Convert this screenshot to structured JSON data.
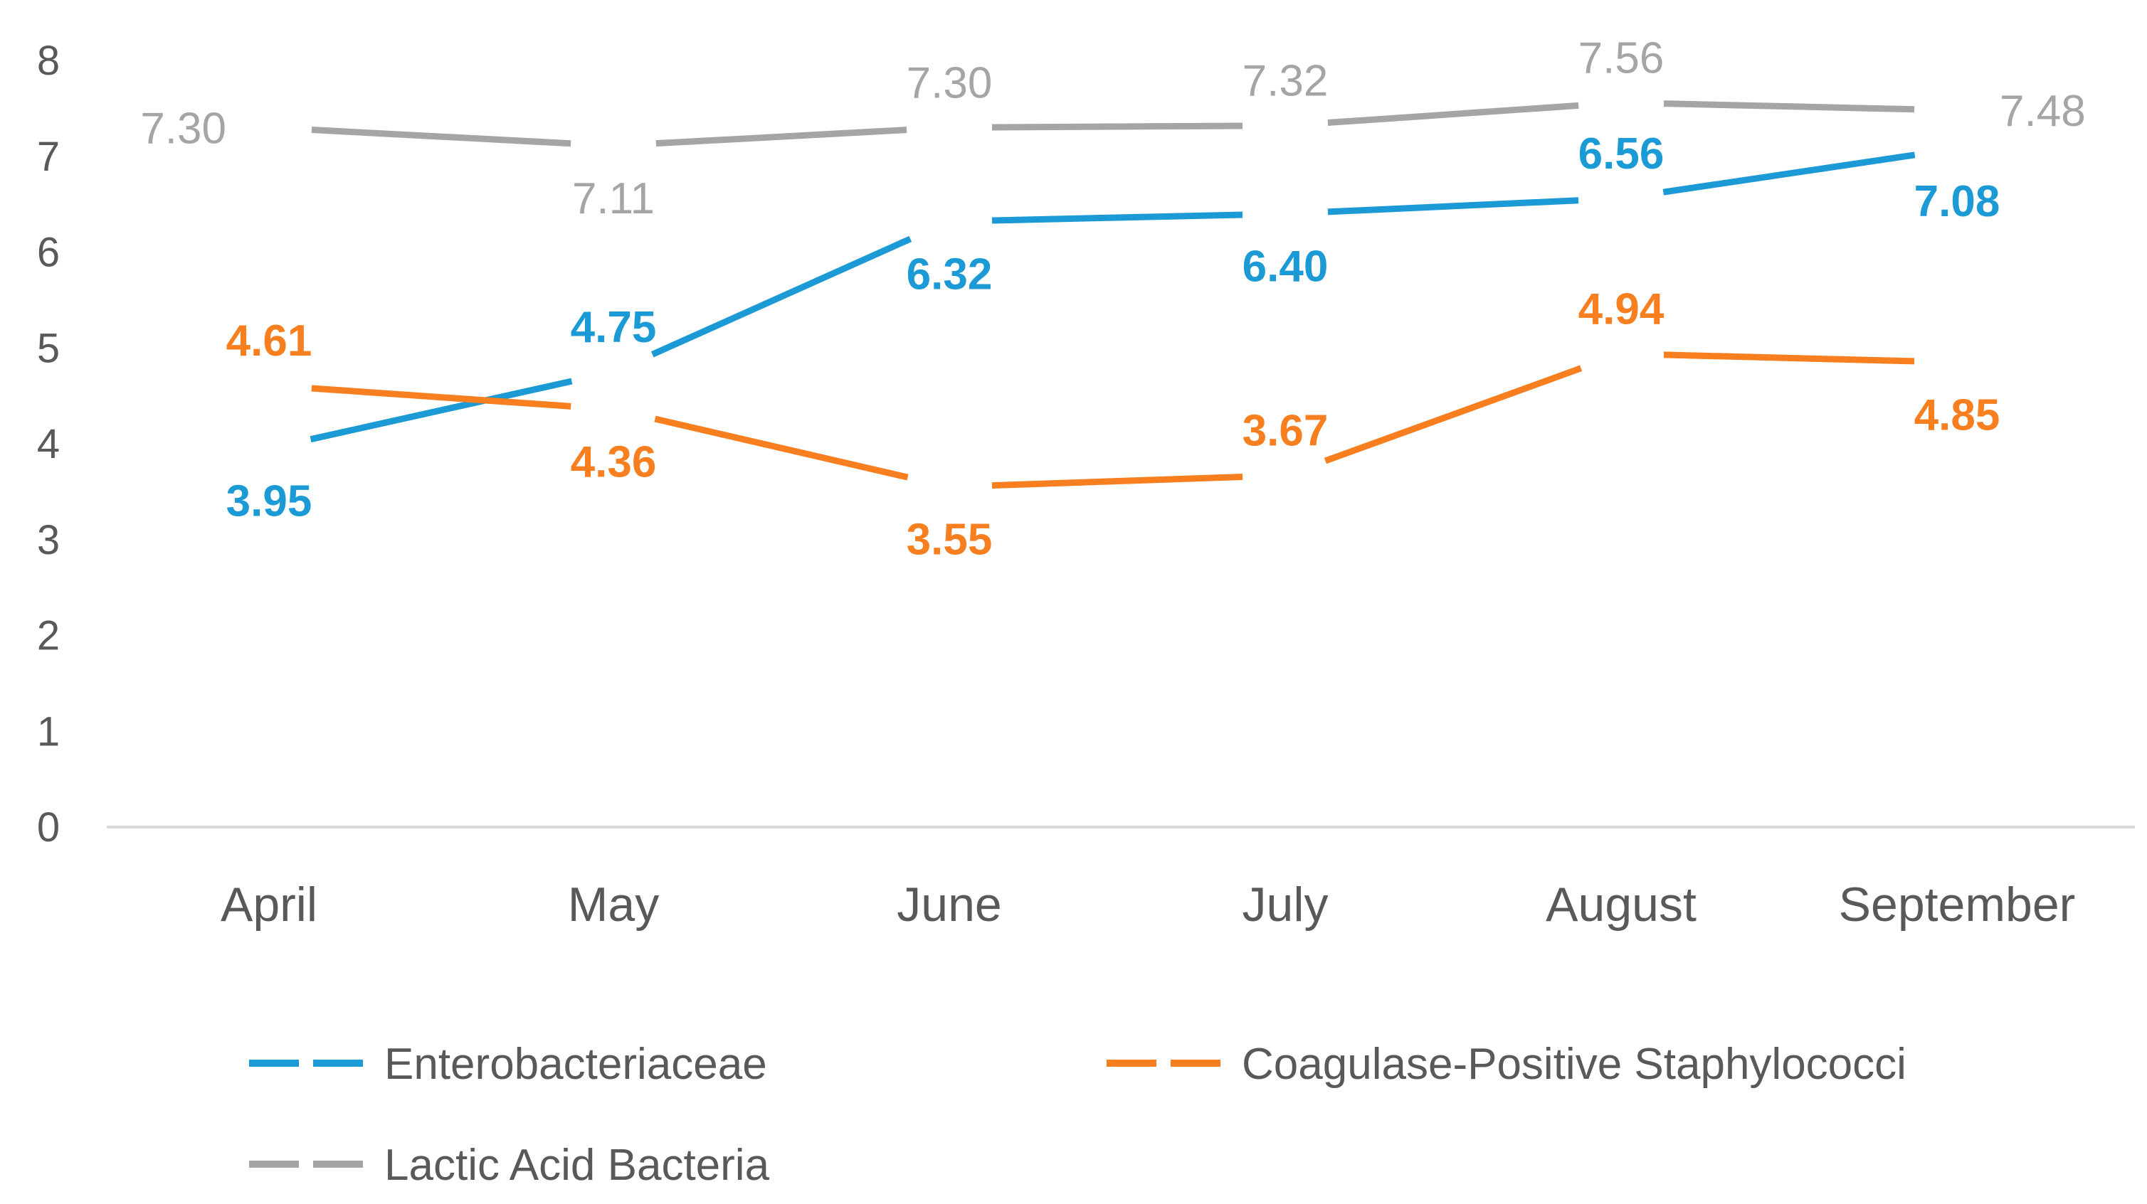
{
  "chart_data": {
    "type": "line",
    "title": "",
    "xlabel": "",
    "ylabel": "",
    "categories": [
      "April",
      "May",
      "June",
      "July",
      "August",
      "September"
    ],
    "yticks": [
      "0",
      "1",
      "2",
      "3",
      "4",
      "5",
      "6",
      "7",
      "8"
    ],
    "ylim": [
      0,
      8
    ],
    "grid": false,
    "legend_position": "bottom",
    "series": [
      {
        "name": "Enterobacteriaceae",
        "color": "#1B9AD6",
        "values": [
          3.95,
          4.75,
          6.32,
          6.4,
          6.56,
          7.08
        ],
        "labels": [
          "3.95",
          "4.75",
          "6.32",
          "6.40",
          "6.56",
          "7.08"
        ],
        "label_positions": [
          "below",
          "above",
          "below",
          "below",
          "above",
          "below"
        ],
        "label_bold": true
      },
      {
        "name": "Coagulase-Positive Staphylococci",
        "color": "#F77F20",
        "values": [
          4.61,
          4.36,
          3.55,
          3.67,
          4.94,
          4.85
        ],
        "labels": [
          "4.61",
          "4.36",
          "3.55",
          "3.67",
          "4.94",
          "4.85"
        ],
        "label_positions": [
          "above",
          "below",
          "below",
          "above",
          "above",
          "below"
        ],
        "label_bold": true
      },
      {
        "name": "Lactic Acid Bacteria",
        "color": "#A5A5A5",
        "values": [
          7.3,
          7.11,
          7.3,
          7.32,
          7.56,
          7.48
        ],
        "labels": [
          "7.30",
          "7.11",
          "7.30",
          "7.32",
          "7.56",
          "7.48"
        ],
        "label_positions": [
          "left",
          "below",
          "above",
          "above",
          "above",
          "right"
        ],
        "label_bold": false
      }
    ]
  }
}
